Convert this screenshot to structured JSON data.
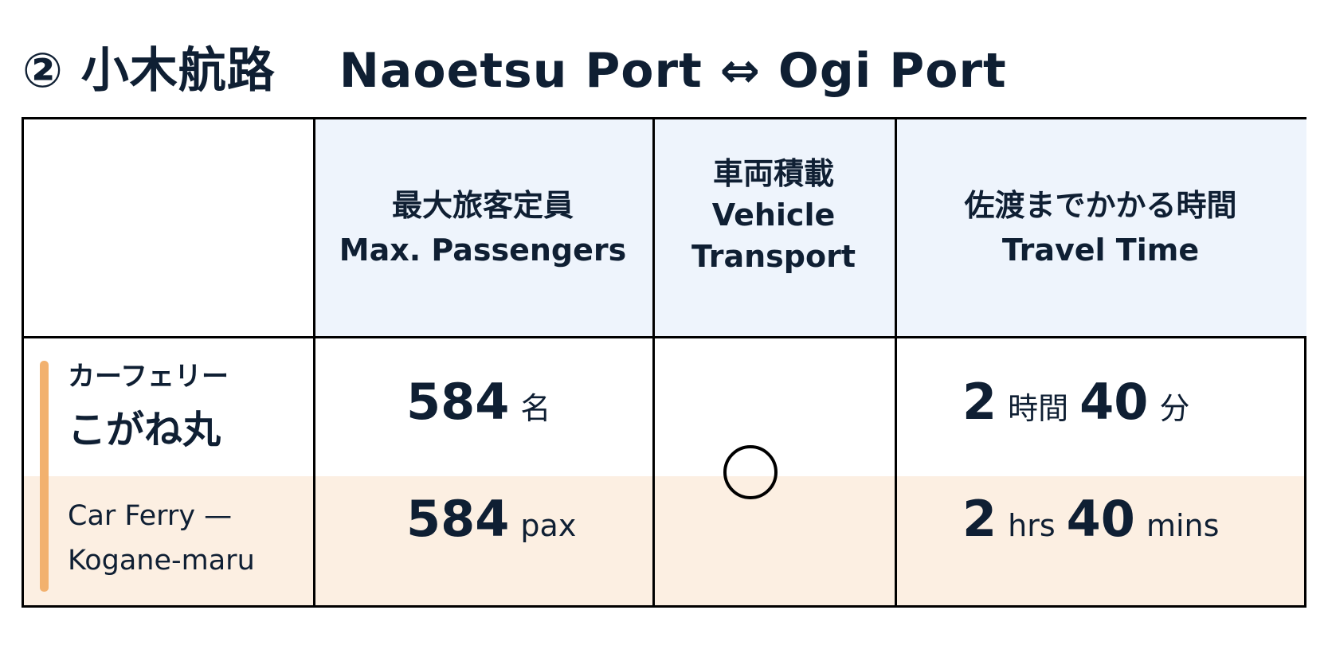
{
  "title": {
    "route_jp": "② 小木航路",
    "route_en": "Naoetsu Port ⇔ Ogi Port"
  },
  "columns": [
    {
      "jp": "",
      "en": ""
    },
    {
      "jp": "最大旅客定員",
      "en": "Max. Passengers"
    },
    {
      "jp": "車両積載",
      "en": "Vehicle Transport"
    },
    {
      "jp": "佐渡までかかる時間",
      "en": "Travel Time"
    }
  ],
  "ship": {
    "type_jp": "カーフェリー",
    "name_jp": "こがね丸",
    "name_en_line1": "Car Ferry —",
    "name_en_line2": "Kogane-maru",
    "passengers": {
      "value": "584",
      "unit_jp": "名",
      "unit_en": "pax"
    },
    "vehicle_transport": "available",
    "travel_time": {
      "hours": "2",
      "hours_unit_jp": "時間",
      "minutes": "40",
      "minutes_unit_jp": "分",
      "hours_unit_en": "hrs",
      "minutes_unit_en": "mins"
    }
  },
  "colors": {
    "text": "#0f1f33",
    "header_bg": "#eef4fc",
    "english_row_bg": "#fcefe2",
    "accent_bar": "#f2b16e"
  }
}
